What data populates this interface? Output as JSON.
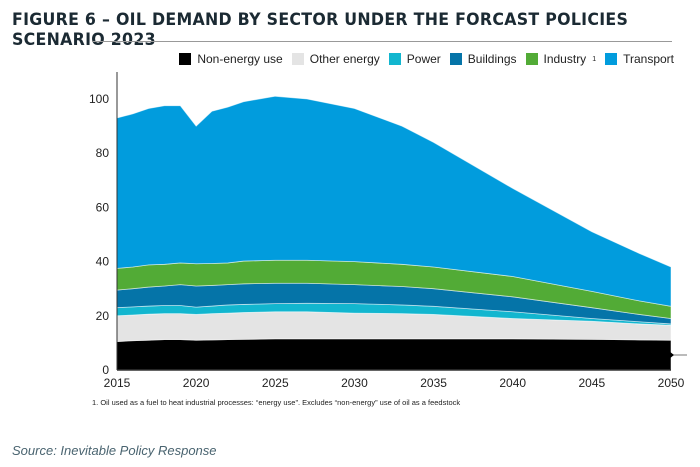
{
  "title": "FIGURE 6 – OIL DEMAND BY SECTOR UNDER THE FORCAST POLICIES SCENARIO 2023",
  "footnote": "1.    Oil used as a fuel to heat industrial processes: “energy use”. Excludes “non-energy” use of oil as a feedstock",
  "source": "Source: Inevitable Policy Response",
  "chart_data": {
    "type": "area",
    "stacked": true,
    "title": "FIGURE 6 – OIL DEMAND BY SECTOR UNDER THE FORCAST POLICIES SCENARIO 2023",
    "xlabel": "",
    "ylabel": "",
    "xlim": [
      2015,
      2050
    ],
    "ylim": [
      0,
      110
    ],
    "x_ticks": [
      2015,
      2020,
      2025,
      2030,
      2035,
      2040,
      2045,
      2050
    ],
    "y_ticks": [
      0,
      20,
      40,
      60,
      80,
      100
    ],
    "grid": false,
    "legend_position": "top-right",
    "x": [
      2015,
      2016,
      2017,
      2018,
      2019,
      2020,
      2021,
      2022,
      2023,
      2025,
      2027,
      2030,
      2033,
      2035,
      2040,
      2045,
      2048,
      2050
    ],
    "series": [
      {
        "name": "Non-energy use",
        "color": "#000000",
        "values": [
          10.5,
          10.8,
          11,
          11.2,
          11.2,
          11,
          11.1,
          11.2,
          11.3,
          11.5,
          11.5,
          11.5,
          11.5,
          11.5,
          11.5,
          11.3,
          11.1,
          11
        ]
      },
      {
        "name": "Other energy",
        "color": "#e4e4e4",
        "values": [
          9.5,
          9.5,
          9.6,
          9.6,
          9.6,
          9.5,
          9.7,
          9.8,
          9.9,
          10,
          10,
          9.5,
          9.3,
          9,
          7.5,
          6.7,
          5.9,
          5.5
        ]
      },
      {
        "name": "Power",
        "color": "#12b6cf",
        "values": [
          3,
          3,
          3,
          3,
          3,
          2.7,
          2.8,
          3,
          3,
          3,
          3.1,
          3.5,
          3.2,
          3,
          2.5,
          1,
          0.8,
          0.5
        ]
      },
      {
        "name": "Buildings",
        "color": "#0574a8",
        "values": [
          6.5,
          6.7,
          7,
          7.2,
          7.7,
          7.8,
          7.6,
          7.5,
          7.6,
          7.5,
          7.4,
          7,
          6.8,
          6.5,
          5.5,
          4,
          2.7,
          2
        ]
      },
      {
        "name": "Industry",
        "legend_sup": "1",
        "color": "#52ab36",
        "values": [
          8,
          8,
          8.2,
          8,
          8,
          8.2,
          8.1,
          8,
          8.4,
          8.5,
          8.5,
          8.5,
          8.2,
          8,
          7.5,
          6,
          5,
          4.5
        ]
      },
      {
        "name": "Transport",
        "color": "#019cdd",
        "values": [
          55.5,
          56.5,
          57.7,
          58.5,
          58,
          50.8,
          56.2,
          57.5,
          58.8,
          60.5,
          59.5,
          56.5,
          51,
          46,
          32.5,
          22,
          17.5,
          14.5
        ]
      }
    ]
  }
}
